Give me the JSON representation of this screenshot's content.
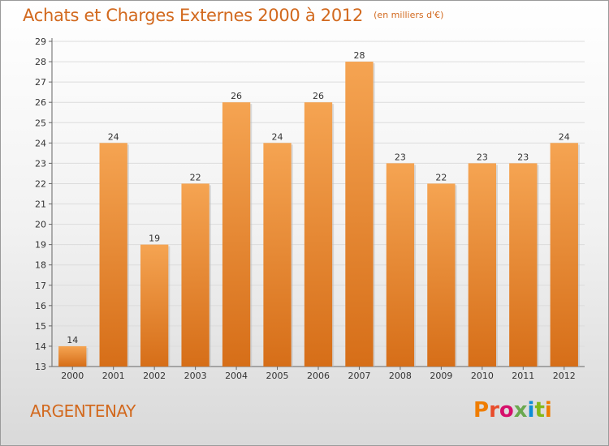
{
  "header": {
    "title": "Achats et Charges Externes 2000 à 2012",
    "subtitle": "(en milliers d'€)"
  },
  "footer": {
    "commune": "ARGENTENAY",
    "logo_text": "Proxiti"
  },
  "colors": {
    "bar_top": "#f5a452",
    "bar_bottom": "#d66e18",
    "title": "#d2691e",
    "logo": [
      "#ef7d00",
      "#e84c2b",
      "#d60f6b",
      "#6aa84f",
      "#0c8dd6",
      "#84b818",
      "#ef7d00"
    ]
  },
  "chart_data": {
    "type": "bar",
    "title": "Achats et Charges Externes 2000 à 2012",
    "subtitle": "(en milliers d'€)",
    "categories": [
      "2000",
      "2001",
      "2002",
      "2003",
      "2004",
      "2005",
      "2006",
      "2007",
      "2008",
      "2009",
      "2010",
      "2011",
      "2012"
    ],
    "values": [
      14,
      24,
      19,
      22,
      26,
      24,
      26,
      28,
      23,
      22,
      23,
      23,
      24
    ],
    "ylim": [
      13,
      29
    ],
    "yticks": [
      13,
      14,
      15,
      16,
      17,
      18,
      19,
      20,
      21,
      22,
      23,
      24,
      25,
      26,
      27,
      28,
      29
    ],
    "grid": true,
    "data_labels": true
  }
}
